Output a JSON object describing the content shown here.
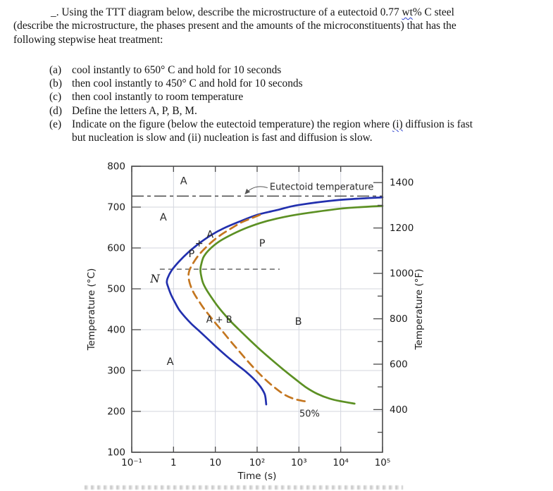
{
  "document": {
    "intro_line1_pre": "_. Using the TTT diagram below, describe the microstructure of a eutectoid 0.77 ",
    "intro_line1_flagged": "wt",
    "intro_line1_post": "% C steel",
    "intro_line2": "(describe the microstructure, the phases present and the amounts of the microconstituents) that has the",
    "intro_line3": "following stepwise heat treatment:",
    "items": [
      {
        "marker": "(a)",
        "text": "cool instantly to 650° C and hold for 10 seconds"
      },
      {
        "marker": "(b)",
        "text": "then cool instantly to 450° C and hold for 10 seconds"
      },
      {
        "marker": "(c)",
        "text": "then cool instantly to room temperature"
      },
      {
        "marker": "(d)",
        "text": "Define the letters A, P, B, M."
      }
    ],
    "item_e": {
      "marker": "(e)",
      "line1_pre": "Indicate on the figure (below the eutectoid temperature) the region where ",
      "line1_flagged": "(i)",
      "line1_post": " diffusion is fast",
      "line2": "but nucleation is slow and (ii) nucleation is fast and diffusion is slow."
    }
  },
  "chart_data": {
    "type": "line",
    "x_scale": "log",
    "xlabel": "Time (s)",
    "ylabel_left": "Temperature (°C)",
    "ylabel_right": "Temperature (°F)",
    "xlim": [
      0.1,
      100000
    ],
    "ylim_c": [
      100,
      800
    ],
    "grid": true,
    "x_ticks": [
      {
        "v": 0.1,
        "label": "10⁻¹"
      },
      {
        "v": 1,
        "label": "1"
      },
      {
        "v": 10,
        "label": "10"
      },
      {
        "v": 100,
        "label": "10²"
      },
      {
        "v": 1000,
        "label": "10³"
      },
      {
        "v": 10000,
        "label": "10⁴"
      },
      {
        "v": 100000,
        "label": "10⁵"
      }
    ],
    "y_ticks_c": [
      800,
      700,
      600,
      500,
      400,
      300,
      200,
      100
    ],
    "y_ticks_f_major": [
      1400,
      1200,
      1000,
      800,
      600,
      400
    ],
    "y_ticks_f_minor": [
      1300,
      1100,
      900,
      700,
      500,
      300
    ],
    "eutectoid_line": {
      "temperature_c": 727,
      "label": "Eutectoid temperature",
      "style": "dash-dot",
      "label_pos": {
        "t": 200,
        "T": 749
      }
    },
    "nose_line": {
      "temperature_c": 548,
      "t_range": [
        0.47,
        345
      ],
      "style": "dashed"
    },
    "series": [
      {
        "name": "transformation-start",
        "color": "#2230ae",
        "style": "solid",
        "points": [
          [
            100000,
            724
          ],
          [
            8150,
            717
          ],
          [
            973,
            705
          ],
          [
            306,
            693
          ],
          [
            100,
            681
          ],
          [
            36.6,
            664
          ],
          [
            15.7,
            648
          ],
          [
            7.8,
            631
          ],
          [
            4.2,
            612
          ],
          [
            2.3,
            590
          ],
          [
            1.33,
            566
          ],
          [
            0.9,
            545
          ],
          [
            0.72,
            526
          ],
          [
            0.69,
            516
          ],
          [
            0.74,
            505
          ],
          [
            0.87,
            486
          ],
          [
            1.09,
            466
          ],
          [
            1.38,
            448
          ],
          [
            1.88,
            431
          ],
          [
            2.7,
            414
          ],
          [
            4.1,
            397
          ],
          [
            6.5,
            378
          ],
          [
            10.7,
            357
          ],
          [
            18.3,
            336
          ],
          [
            31.4,
            316
          ],
          [
            54,
            297
          ],
          [
            86,
            278
          ],
          [
            121,
            260
          ],
          [
            153,
            241
          ],
          [
            165,
            217
          ]
        ]
      },
      {
        "name": "50-percent-transformed",
        "color": "#c4761f",
        "style": "dashed",
        "label": "50%",
        "points": [
          [
            117,
            681
          ],
          [
            70.6,
            672
          ],
          [
            41.1,
            662
          ],
          [
            24,
            648
          ],
          [
            14,
            633
          ],
          [
            8.5,
            616
          ],
          [
            5.5,
            598
          ],
          [
            3.9,
            581
          ],
          [
            3.0,
            564
          ],
          [
            2.46,
            548
          ],
          [
            2.28,
            534
          ],
          [
            2.37,
            519
          ],
          [
            2.66,
            503
          ],
          [
            3.2,
            486
          ],
          [
            4.1,
            469
          ],
          [
            5.3,
            452
          ],
          [
            7.3,
            434
          ],
          [
            10.3,
            415
          ],
          [
            15.1,
            395
          ],
          [
            23.1,
            372
          ],
          [
            36.6,
            348
          ],
          [
            60.5,
            322
          ],
          [
            100,
            298
          ],
          [
            165,
            276
          ],
          [
            273,
            257
          ],
          [
            451,
            241
          ],
          [
            745,
            231
          ],
          [
            1180,
            226
          ],
          [
            1610,
            224
          ]
        ]
      },
      {
        "name": "transformation-finish",
        "color": "#5c9023",
        "style": "solid",
        "points": [
          [
            100000,
            703
          ],
          [
            12000,
            697
          ],
          [
            1740,
            686
          ],
          [
            451,
            676
          ],
          [
            147,
            664
          ],
          [
            58.2,
            650
          ],
          [
            25.9,
            634
          ],
          [
            12.9,
            617
          ],
          [
            7.5,
            598
          ],
          [
            5.3,
            579
          ],
          [
            4.6,
            560
          ],
          [
            4.4,
            547
          ],
          [
            4.6,
            531
          ],
          [
            5.1,
            514
          ],
          [
            6.2,
            497
          ],
          [
            8.2,
            478
          ],
          [
            11.1,
            459
          ],
          [
            15.7,
            440
          ],
          [
            24,
            419
          ],
          [
            39.6,
            397
          ],
          [
            67.9,
            374
          ],
          [
            121,
            350
          ],
          [
            225,
            326
          ],
          [
            417,
            303
          ],
          [
            773,
            281
          ],
          [
            1430,
            260
          ],
          [
            2760,
            243
          ],
          [
            5530,
            231
          ],
          [
            11100,
            224
          ],
          [
            21400,
            219
          ]
        ]
      }
    ],
    "annotations": [
      {
        "text": "A",
        "t": 1.75,
        "T": 765,
        "style": "sans"
      },
      {
        "text": "A",
        "t": 0.57,
        "T": 676,
        "style": "sans"
      },
      {
        "text": "A",
        "t": 0.83,
        "T": 322,
        "style": "sans"
      },
      {
        "text": "P",
        "t": 132,
        "T": 612,
        "style": "sans"
      },
      {
        "text": "A",
        "t": 7.5,
        "T": 634,
        "style": "sans"
      },
      {
        "text": "+",
        "t": 4.1,
        "T": 612,
        "style": "sans"
      },
      {
        "text": "P",
        "t": 2.7,
        "T": 586,
        "style": "sans"
      },
      {
        "text": "N",
        "t": 0.36,
        "T": 524,
        "style": "italic-serif"
      },
      {
        "text": "A + B",
        "t": 12.4,
        "T": 426,
        "style": "sans"
      },
      {
        "text": "B",
        "t": 970,
        "T": 421,
        "style": "sans"
      },
      {
        "text": "50%",
        "t": 1800,
        "T": 196,
        "style": "sans"
      }
    ]
  }
}
